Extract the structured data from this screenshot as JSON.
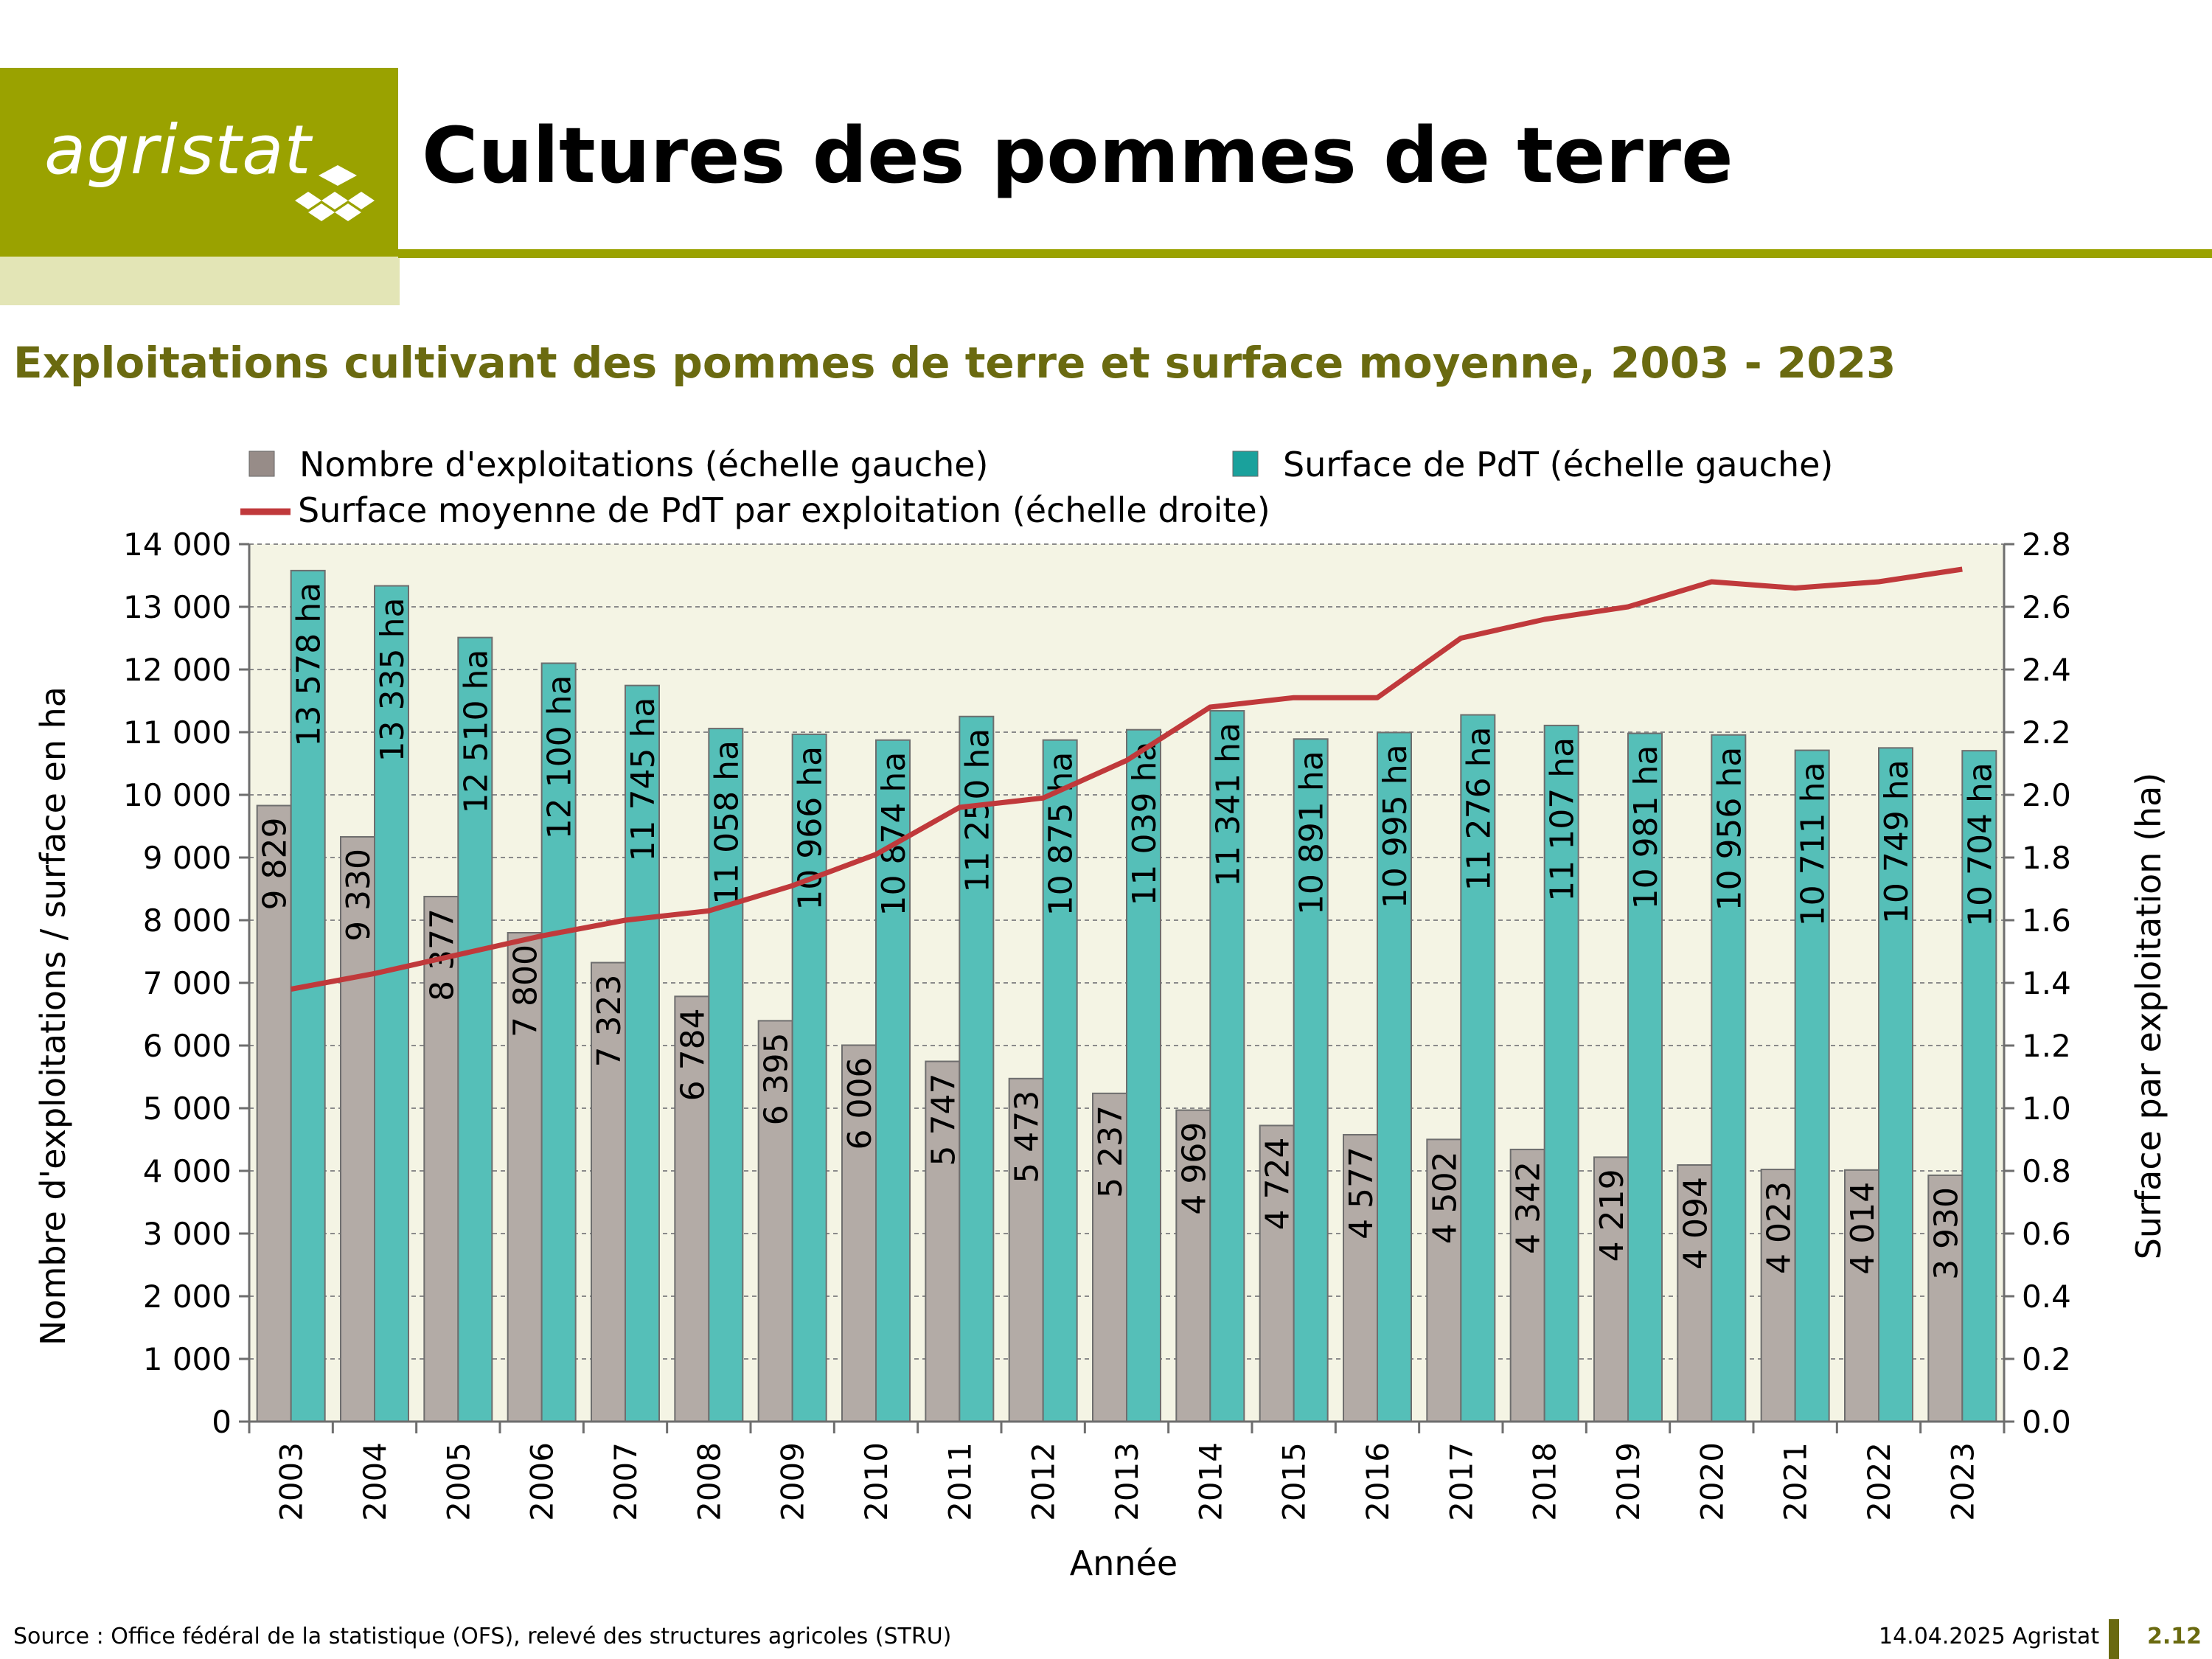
{
  "header": {
    "logo_text": "agristat",
    "title": "Cultures des pommes de terre"
  },
  "subtitle": "Exploitations cultivant des pommes de terre et surface moyenne, 2003 - 2023",
  "colors": {
    "brand": "#9aa200",
    "brand_light": "#e3e5b6",
    "subtitle": "#6a6a10",
    "plot_bg": "#f4f4e4",
    "bar_exploitations": "#b3aba6",
    "bar_surface": "#55bfb8",
    "line": "#c0393b"
  },
  "chart_data": {
    "type": "bar",
    "categories": [
      "2003",
      "2004",
      "2005",
      "2006",
      "2007",
      "2008",
      "2009",
      "2010",
      "2011",
      "2012",
      "2013",
      "2014",
      "2015",
      "2016",
      "2017",
      "2018",
      "2019",
      "2020",
      "2021",
      "2022",
      "2023"
    ],
    "series": [
      {
        "name": "Nombre d'exploitations (échelle gauche)",
        "type": "bar",
        "axis": "left",
        "values": [
          9829,
          9330,
          8377,
          7800,
          7323,
          6784,
          6395,
          6006,
          5747,
          5473,
          5237,
          4969,
          4724,
          4577,
          4502,
          4342,
          4219,
          4094,
          4023,
          4014,
          3930
        ],
        "labels": [
          "9 829",
          "9 330",
          "8 377",
          "7 800",
          "7 323",
          "6 784",
          "6 395",
          "6 006",
          "5 747",
          "5 473",
          "5 237",
          "4 969",
          "4 724",
          "4 577",
          "4 502",
          "4 342",
          "4 219",
          "4 094",
          "4 023",
          "4 014",
          "3 930"
        ]
      },
      {
        "name": "Surface de PdT (échelle gauche)",
        "type": "bar",
        "axis": "left",
        "values": [
          13578,
          13335,
          12510,
          12100,
          11745,
          11058,
          10966,
          10874,
          11250,
          10875,
          11039,
          11341,
          10891,
          10995,
          11276,
          11107,
          10981,
          10956,
          10711,
          10749,
          10704
        ],
        "labels": [
          "13 578 ha",
          "13 335 ha",
          "12 510 ha",
          "12 100 ha",
          "11 745 ha",
          "11 058 ha",
          "10 966 ha",
          "10 874 ha",
          "11 250 ha",
          "10 875 ha",
          "11 039 ha",
          "11 341 ha",
          "10 891 ha",
          "10 995 ha",
          "11 276 ha",
          "11 107 ha",
          "10 981 ha",
          "10 956 ha",
          "10 711 ha",
          "10 749 ha",
          "10 704 ha"
        ]
      },
      {
        "name": "Surface moyenne de PdT par exploitation (échelle droite)",
        "type": "line",
        "axis": "right",
        "values": [
          1.38,
          1.43,
          1.49,
          1.55,
          1.6,
          1.63,
          1.71,
          1.81,
          1.96,
          1.99,
          2.11,
          2.28,
          2.31,
          2.31,
          2.5,
          2.56,
          2.6,
          2.68,
          2.66,
          2.68,
          2.72
        ]
      }
    ],
    "xlabel": "Année",
    "ylabel": "Nombre d'exploitations / surface en ha",
    "y2label": "Surface par exploitation (ha)",
    "ylim": [
      0,
      14000
    ],
    "y2lim": [
      0,
      2.8
    ],
    "yticks": [
      "0",
      "1 000",
      "2 000",
      "3 000",
      "4 000",
      "5 000",
      "6 000",
      "7 000",
      "8 000",
      "9 000",
      "10 000",
      "11 000",
      "12 000",
      "13 000",
      "14 000"
    ],
    "y2ticks": [
      "0.0",
      "0.2",
      "0.4",
      "0.6",
      "0.8",
      "1.0",
      "1.2",
      "1.4",
      "1.6",
      "1.8",
      "2.0",
      "2.2",
      "2.4",
      "2.6",
      "2.8"
    ],
    "grid": true,
    "legend_position": "top"
  },
  "footer": {
    "source": "Source : Office fédéral de la statistique (OFS), relevé des structures agricoles (STRU)",
    "date": "14.04.2025 Agristat",
    "page": "2.12"
  }
}
